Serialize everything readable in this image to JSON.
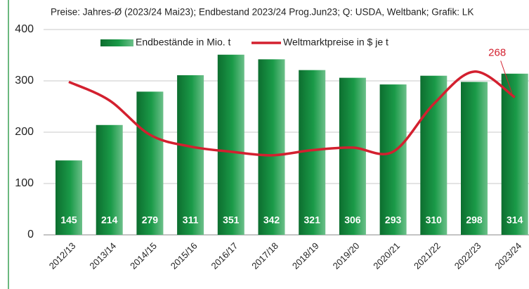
{
  "chart_data": {
    "type": "bar_line",
    "subtitle": "Preise: Jahres-Ø (2023/24 Mai23); Endbestand 2023/24 Prog.Jun23;  Q: USDA, Weltbank; Grafik: LK",
    "categories": [
      "2012/13",
      "2013/14",
      "2014/15",
      "2015/16",
      "2016/17",
      "2017/18",
      "2018/19",
      "2019/20",
      "2020/21",
      "2021/22",
      "2022/23",
      "2023/24"
    ],
    "series": [
      {
        "name": "Endbestände in Mio. t",
        "type": "bar",
        "color": "#138a3e",
        "values": [
          145,
          214,
          279,
          311,
          351,
          342,
          321,
          306,
          293,
          310,
          298,
          314
        ]
      },
      {
        "name": "Weltmarktpreise in $ je t",
        "type": "line",
        "color": "#d3202f",
        "values": [
          298,
          262,
          195,
          172,
          162,
          155,
          165,
          170,
          162,
          255,
          318,
          268
        ],
        "value_labels": [
          null,
          null,
          null,
          null,
          null,
          null,
          null,
          null,
          null,
          null,
          null,
          "268"
        ]
      }
    ],
    "ylim": [
      0,
      400
    ],
    "yticks": [
      0,
      100,
      200,
      300,
      400
    ],
    "grid": true
  }
}
